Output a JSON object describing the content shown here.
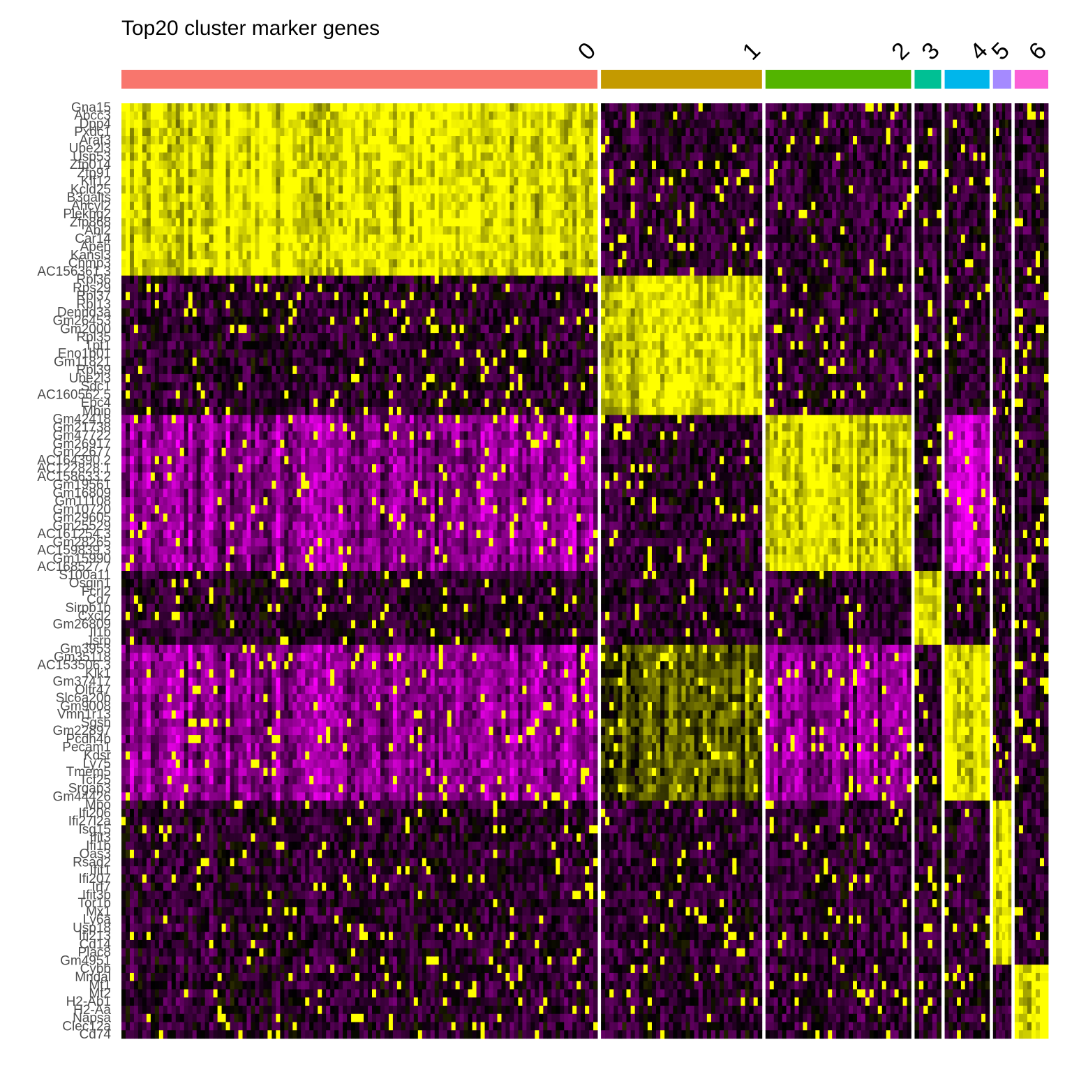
{
  "chart_data": {
    "type": "heatmap",
    "title": "Top20 cluster marker genes",
    "clusters": [
      {
        "name": "0",
        "color": "#F8766D",
        "cells": 340
      },
      {
        "name": "1",
        "color": "#C49A00",
        "cells": 115
      },
      {
        "name": "2",
        "color": "#53B400",
        "cells": 104
      },
      {
        "name": "3",
        "color": "#00C094",
        "cells": 19
      },
      {
        "name": "4",
        "color": "#00B6EB",
        "cells": 32
      },
      {
        "name": "5",
        "color": "#A58AFF",
        "cells": 13
      },
      {
        "name": "6",
        "color": "#FB61D7",
        "cells": 24
      }
    ],
    "gene_groups": [
      {
        "cluster": "0",
        "genes": [
          "Gna15",
          "Abcc3",
          "Dpp4",
          "Pxdc1",
          "Araf3",
          "Ube2l3",
          "Usp53",
          "Zfp014",
          "Zfp91",
          "Klf12",
          "Kcld25",
          "B3galts",
          "Ahcyl2",
          "Plekhg2",
          "Zfp868",
          "Abl2",
          "Car14",
          "Apeh",
          "Kansl3",
          "Chmp3",
          "AC156361.3"
        ]
      },
      {
        "cluster": "1",
        "genes": [
          "Rpl36",
          "Rps29",
          "Rpl37",
          "Rpl13",
          "Dennd3a",
          "Gm26453",
          "Gm2000",
          "Rpl35",
          "Tpt1",
          "Eno1b01",
          "Gm11821",
          "Rpl39",
          "Ube2l3",
          "Sdc1",
          "AC160562.5",
          "Ebc4",
          "Mbip"
        ]
      },
      {
        "cluster": "2",
        "genes": [
          "Gm42418",
          "Gm21738",
          "Gm47722",
          "Gm26917",
          "Gm22677",
          "AC164390.2",
          "AC122828.1",
          "AC158633.2",
          "Gm19561",
          "Gm16809",
          "Gm11108",
          "Gm10720",
          "Gm29605",
          "Gm25529",
          "AC161254.3",
          "Gm28265",
          "AC159839.3",
          "Gm15990",
          "AC168527.7"
        ]
      },
      {
        "cluster": "3",
        "genes": [
          "S100a11",
          "Osgin1",
          "Fcrl2",
          "Cd7",
          "Sirpb1b",
          "Cxcl2",
          "Gm26809",
          "Il1b",
          "Jsrp"
        ]
      },
      {
        "cluster": "4",
        "genes": [
          "Gm3953",
          "Gm35118",
          "AC153506.3",
          "Klk1",
          "Gm37417",
          "Olfr47",
          "Slc6a20b",
          "Gm9008",
          "Vmn1r13",
          "Sgsh",
          "Gm22897",
          "Pcdh4b",
          "Pecam1",
          "Kdsr",
          "Ly75",
          "Tmem5",
          "Tcf25",
          "Srgap3",
          "Gm44426"
        ]
      },
      {
        "cluster": "5",
        "genes": [
          "Mpo",
          "Ifi206",
          "Ifi27l2a",
          "Isg15",
          "Ifit3",
          "Ifi1b",
          "Oas3",
          "Rsad2",
          "Ifit1",
          "Ifi207",
          "Irf7",
          "Ifit3b",
          "Tor1b",
          "Mx1",
          "Ly6a",
          "Usp18",
          "Ifi213",
          "Cd14",
          "Plac8",
          "Gm4951"
        ]
      },
      {
        "cluster": "6",
        "genes": [
          "Cybb",
          "Mndal",
          "Mt1",
          "Mt2",
          "H2-Ab1",
          "H2-Aa",
          "Napsa",
          "Clec12a",
          "Cd74"
        ]
      }
    ],
    "color_scale": {
      "low": "#FF00FF",
      "mid": "#000000",
      "high": "#FFFF00"
    },
    "legend": "none"
  }
}
